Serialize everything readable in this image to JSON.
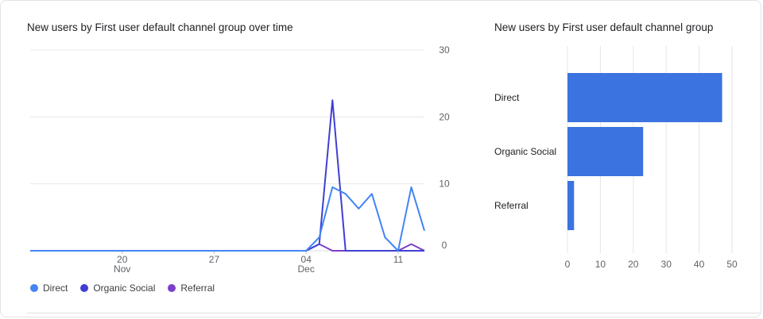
{
  "chart_data": [
    {
      "type": "line",
      "title": "New users by First user default channel group over time",
      "ylim": [
        0,
        30
      ],
      "y_ticks": [
        "0",
        "10",
        "20",
        "30"
      ],
      "x_ticks": [
        {
          "label": "20",
          "sub": "Nov",
          "day": 20
        },
        {
          "label": "27",
          "sub": "",
          "day": 27
        },
        {
          "label": "04",
          "sub": "Dec",
          "day": 34
        },
        {
          "label": "11",
          "sub": "",
          "day": 41
        }
      ],
      "x": [
        13,
        14,
        15,
        16,
        17,
        18,
        19,
        20,
        21,
        22,
        23,
        24,
        25,
        26,
        27,
        28,
        29,
        30,
        31,
        32,
        33,
        34,
        35,
        36,
        37,
        38,
        39,
        40,
        41,
        42,
        43
      ],
      "series": [
        {
          "name": "Direct",
          "color": "#4285f4",
          "values": [
            0,
            0,
            0,
            0,
            0,
            0,
            0,
            0,
            0,
            0,
            0,
            0,
            0,
            0,
            0,
            0,
            0,
            0,
            0,
            0,
            0,
            0,
            2,
            9.5,
            8.5,
            6.3,
            8.5,
            2,
            0,
            9.5,
            3
          ]
        },
        {
          "name": "Organic Social",
          "color": "#3f3fd4",
          "values": [
            0,
            0,
            0,
            0,
            0,
            0,
            0,
            0,
            0,
            0,
            0,
            0,
            0,
            0,
            0,
            0,
            0,
            0,
            0,
            0,
            0,
            0,
            1,
            22.5,
            0,
            0,
            0,
            0,
            0,
            0,
            0
          ]
        },
        {
          "name": "Referral",
          "color": "#7b3fc9",
          "values": [
            0,
            0,
            0,
            0,
            0,
            0,
            0,
            0,
            0,
            0,
            0,
            0,
            0,
            0,
            0,
            0,
            0,
            0,
            0,
            0,
            0,
            0,
            1,
            0,
            0,
            0,
            0,
            0,
            0,
            1,
            0
          ]
        }
      ]
    },
    {
      "type": "bar",
      "orientation": "horizontal",
      "title": "New users by First user default channel group",
      "categories": [
        "Direct",
        "Organic Social",
        "Referral"
      ],
      "values": [
        47,
        23,
        2
      ],
      "xlim": [
        0,
        50
      ],
      "x_ticks": [
        "0",
        "10",
        "20",
        "30",
        "40",
        "50"
      ],
      "color": "#3b73e0"
    }
  ],
  "legend": [
    {
      "label": "Direct",
      "color": "#4285f4"
    },
    {
      "label": "Organic Social",
      "color": "#3f3fd4"
    },
    {
      "label": "Referral",
      "color": "#7b3fc9"
    }
  ]
}
